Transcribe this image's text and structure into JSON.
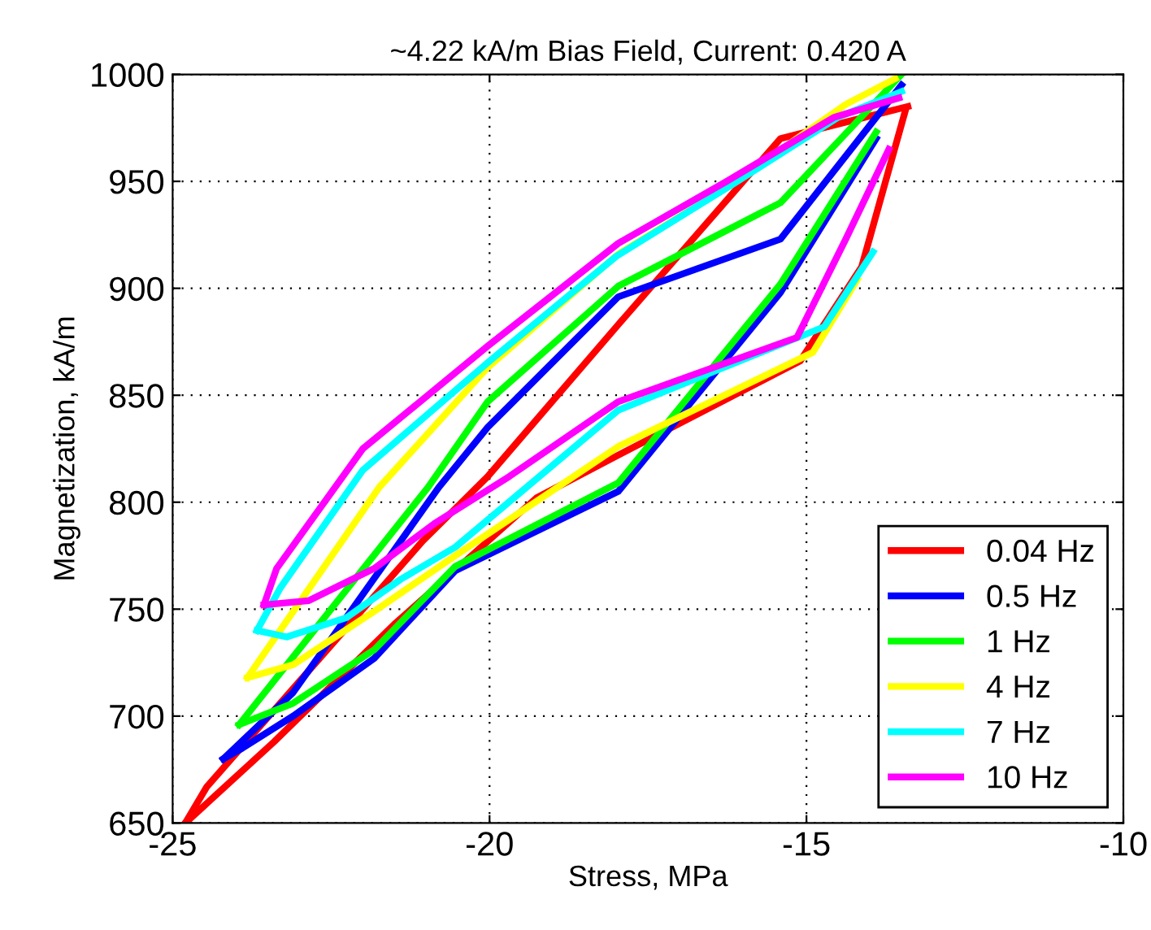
{
  "chart_data": {
    "type": "line",
    "title": "~4.22 kA/m Bias Field, Current: 0.420 A",
    "xlabel": "Stress, MPa",
    "ylabel": "Magnetization, kA/m",
    "xlim": [
      -25,
      -10
    ],
    "xticks": [
      -25,
      -20,
      -15,
      -10
    ],
    "ylim": [
      650,
      1000
    ],
    "yticks": [
      650,
      700,
      750,
      800,
      850,
      900,
      950,
      1000
    ],
    "grid": true,
    "legend": "bottom right",
    "marker": "none",
    "line_style": "solid",
    "series": [
      {
        "name": "0.04 Hz",
        "color": "#ff0000",
        "x": [
          -24.8,
          -24.46,
          -21.05,
          -20.03,
          -17.97,
          -15.41,
          -13.4
        ],
        "values": [
          650,
          667,
          782,
          812,
          883,
          970,
          985
        ]
      },
      {
        "color": "#ff0000",
        "x": [
          -24.8,
          -23.4,
          -21.5,
          -19.26,
          -17.97,
          -15.1,
          -14.13,
          -13.44
        ],
        "values": [
          650,
          688,
          743,
          802,
          822,
          866,
          910,
          983
        ]
      },
      {
        "name": "0.5 Hz",
        "color": "#0000ff",
        "x": [
          -24.2,
          -23.1,
          -20.8,
          -20.03,
          -17.97,
          -15.41,
          -13.5
        ],
        "values": [
          680,
          711,
          807,
          835,
          896,
          923,
          995
        ]
      },
      {
        "color": "#0000ff",
        "x": [
          -24.2,
          -23.9,
          -23.1,
          -21.82,
          -20.54,
          -17.97,
          -15.41,
          -13.9
        ],
        "values": [
          680,
          685,
          700,
          727,
          768,
          805,
          898,
          970
        ]
      },
      {
        "name": "1 Hz",
        "color": "#00ff00",
        "x": [
          -23.95,
          -20.97,
          -20.03,
          -17.97,
          -15.41,
          -13.5
        ],
        "values": [
          696,
          807,
          847,
          901,
          940,
          1000
        ]
      },
      {
        "color": "#00ff00",
        "x": [
          -23.95,
          -23.1,
          -21.82,
          -20.54,
          -17.97,
          -15.41,
          -13.9
        ],
        "values": [
          696,
          706,
          731,
          770,
          809,
          902,
          973
        ]
      },
      {
        "name": "4 Hz",
        "color": "#ffff00",
        "x": [
          -23.82,
          -21.74,
          -20.03,
          -17.97,
          -16.26,
          -14.38,
          -13.6
        ],
        "values": [
          718,
          807,
          863,
          916,
          947,
          986,
          998
        ]
      },
      {
        "color": "#ffff00",
        "x": [
          -23.82,
          -23.1,
          -21.82,
          -20.54,
          -17.97,
          -14.9,
          -14.2
        ],
        "values": [
          718,
          724,
          749,
          775,
          826,
          870,
          904
        ]
      },
      {
        "name": "7 Hz",
        "color": "#00ffff",
        "x": [
          -23.67,
          -23.3,
          -22.0,
          -20.0,
          -18.0,
          -16.2,
          -14.5,
          -13.5
        ],
        "values": [
          740,
          760,
          815,
          866,
          915,
          948,
          980,
          992
        ]
      },
      {
        "color": "#00ffff",
        "x": [
          -23.67,
          -23.2,
          -22.26,
          -21.4,
          -20.54,
          -17.97,
          -14.72,
          -13.95
        ],
        "values": [
          740,
          737,
          746,
          764,
          779,
          843,
          882,
          917
        ]
      },
      {
        "name": "10 Hz",
        "color": "#ff00ff",
        "x": [
          -23.56,
          -23.36,
          -22.0,
          -20.03,
          -17.97,
          -16.26,
          -14.56,
          -13.54
        ],
        "values": [
          752,
          769,
          825,
          873,
          921,
          950,
          980,
          989
        ]
      },
      {
        "color": "#ff00ff",
        "x": [
          -23.56,
          -22.85,
          -21.82,
          -20.87,
          -19.69,
          -17.97,
          -15.15,
          -14.38,
          -13.7
        ],
        "values": [
          752,
          754,
          769,
          790,
          812,
          847,
          877,
          923,
          965
        ]
      }
    ]
  }
}
